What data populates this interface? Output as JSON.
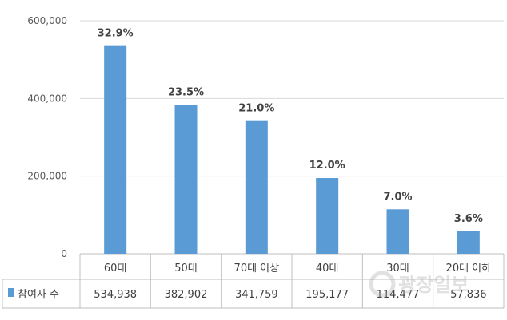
{
  "chart_data": {
    "type": "bar",
    "title": "",
    "xlabel": "",
    "ylabel": "",
    "ylim": [
      0,
      600000
    ],
    "yticks": [
      "0",
      "200,000",
      "400,000",
      "600,000"
    ],
    "ytick_values": [
      0,
      200000,
      400000,
      600000
    ],
    "grid": true,
    "legend": "data-table-left",
    "categories": [
      "60대",
      "50대",
      "70대 이상",
      "40대",
      "30대",
      "20대 이하"
    ],
    "series": [
      {
        "name": "참여자 수",
        "color": "#5b9bd5",
        "values": [
          534938,
          382902,
          341759,
          195177,
          114477,
          57836
        ],
        "value_labels": [
          "534,938",
          "382,902",
          "341,759",
          "195,177",
          "114,477",
          "57,836"
        ],
        "data_labels": [
          "32.9%",
          "23.5%",
          "21.0%",
          "12.0%",
          "7.0%",
          "3.6%"
        ]
      }
    ]
  },
  "watermark": "광장일보"
}
